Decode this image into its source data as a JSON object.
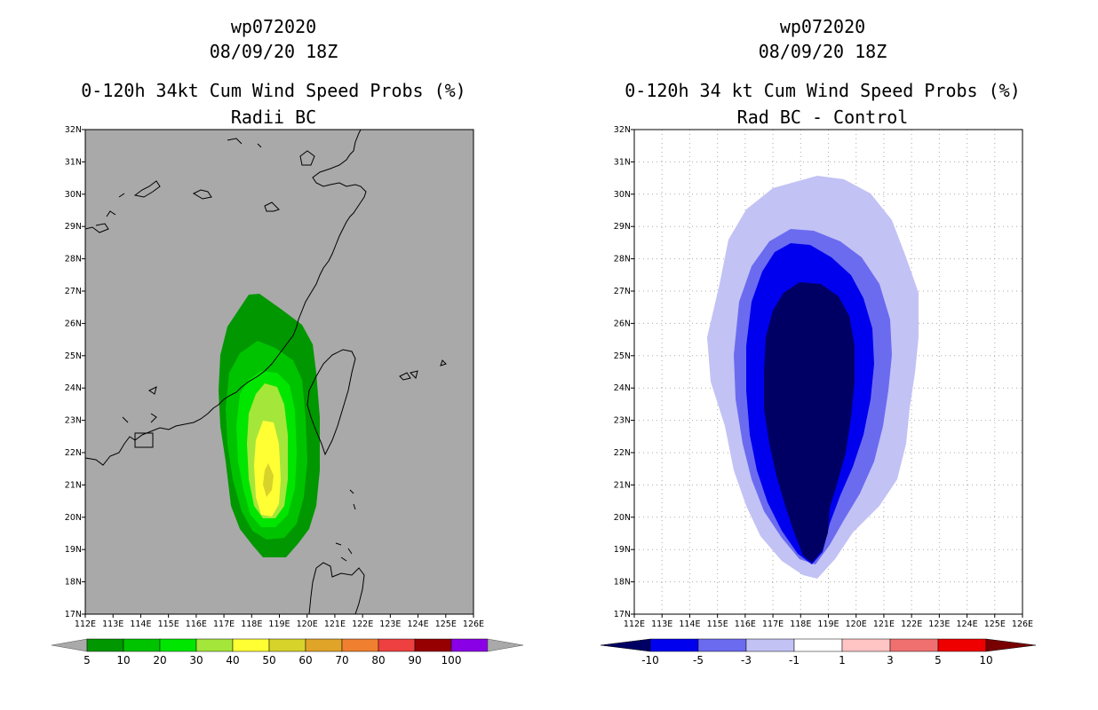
{
  "left_panel": {
    "storm_id": "wp072020",
    "datetime": "08/09/20 18Z",
    "title_line1": "0-120h 34kt Cum Wind Speed Probs (%)",
    "title_line2": "Radii BC",
    "colorbar": {
      "labels": [
        "5",
        "10",
        "20",
        "30",
        "40",
        "50",
        "60",
        "70",
        "80",
        "90",
        "100"
      ],
      "colors": [
        "#009700",
        "#00c300",
        "#00e600",
        "#a5e63a",
        "#ffff33",
        "#d7d32a",
        "#e0a428",
        "#f08030",
        "#ee4040",
        "#960000",
        "#8a00e6"
      ]
    }
  },
  "right_panel": {
    "storm_id": "wp072020",
    "datetime": "08/09/20 18Z",
    "title_line1": "0-120h 34 kt Cum Wind Speed Probs (%)",
    "title_line2": "Rad BC - Control",
    "colorbar": {
      "labels": [
        "-10",
        "-5",
        "-3",
        "-1",
        "1",
        "3",
        "5",
        "10"
      ],
      "colors": [
        "#000064",
        "#0000ee",
        "#6b6bf0",
        "#c2c2f5",
        "#ffffff",
        "#ffc4c4",
        "#f07070",
        "#ee0000",
        "#780000"
      ]
    }
  },
  "axes": {
    "lon_labels": [
      "112E",
      "113E",
      "114E",
      "115E",
      "116E",
      "117E",
      "118E",
      "119E",
      "120E",
      "121E",
      "122E",
      "123E",
      "124E",
      "125E",
      "126E"
    ],
    "lat_labels": [
      "32N",
      "31N",
      "30N",
      "29N",
      "28N",
      "27N",
      "26N",
      "25N",
      "24N",
      "23N",
      "22N",
      "21N",
      "20N",
      "19N",
      "18N",
      "17N"
    ],
    "lon_range": [
      112,
      126
    ],
    "lat_range": [
      17,
      32
    ]
  },
  "colors": {
    "map_background_left": "#a9a9a9",
    "coastline": "#000000",
    "grid": "#aaaaaa"
  }
}
